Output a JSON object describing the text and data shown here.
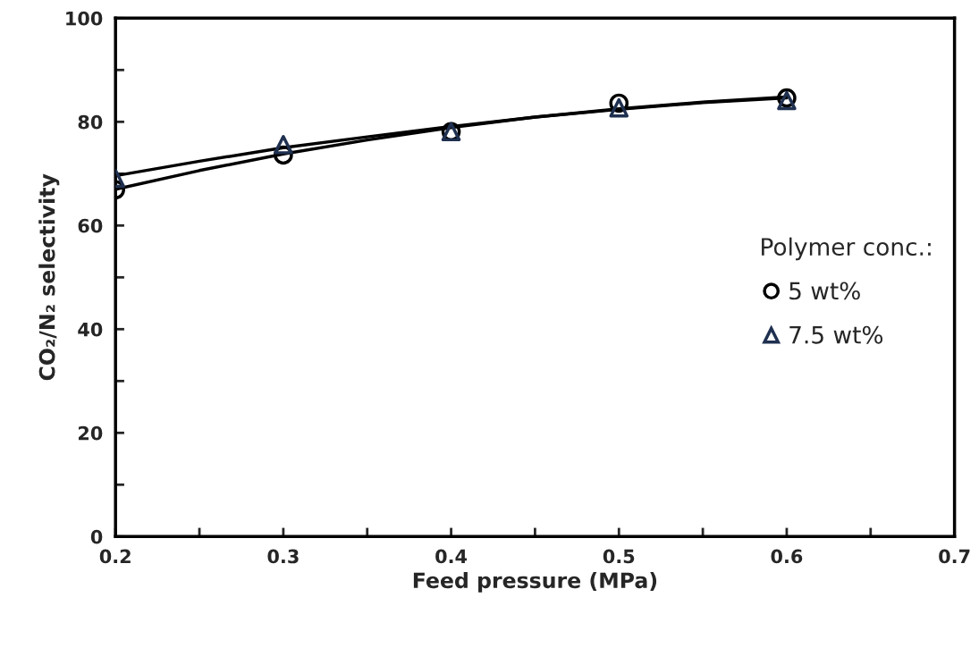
{
  "chart_data": {
    "type": "scatter",
    "xlabel": "Feed pressure (MPa)",
    "ylabel": "CO₂/N₂ selectivity",
    "legend_title": "Polymer conc.:",
    "legend": "right",
    "x": [
      0.2,
      0.3,
      0.4,
      0.5,
      0.6
    ],
    "series": [
      {
        "name": "5 wt%",
        "marker": "circle",
        "color": "#000000",
        "values": [
          66.9,
          73.6,
          78.1,
          83.6,
          84.6
        ]
      },
      {
        "name": "7.5 wt%",
        "marker": "triangle",
        "color": "#1f3050",
        "values": [
          69.1,
          75.6,
          78.1,
          82.7,
          84.1
        ]
      },
      {
        "type": "line",
        "marker": "none",
        "line_style": "solid",
        "color": "#000000",
        "x": [
          0.2,
          0.25,
          0.3,
          0.35,
          0.4,
          0.45,
          0.5,
          0.55,
          0.6
        ],
        "values": [
          67.0,
          70.6,
          73.8,
          76.5,
          78.9,
          80.9,
          82.5,
          83.8,
          84.8
        ]
      },
      {
        "type": "line",
        "marker": "none",
        "line_style": "solid",
        "color": "#000000",
        "x": [
          0.2,
          0.25,
          0.3,
          0.35,
          0.4,
          0.45,
          0.5,
          0.55,
          0.6
        ],
        "values": [
          69.6,
          72.4,
          75.0,
          77.1,
          79.1,
          80.9,
          82.4,
          83.7,
          84.6
        ]
      }
    ],
    "xlim": [
      0.2,
      0.7
    ],
    "xticks": [
      0.2,
      {
        "value": 0.25,
        "label": null
      },
      0.3,
      {
        "value": 0.35,
        "label": null
      },
      0.4,
      {
        "value": 0.45,
        "label": null
      },
      0.5,
      {
        "value": 0.55,
        "label": null
      },
      0.6,
      {
        "value": 0.65,
        "label": null
      },
      0.7
    ],
    "ylim": [
      0,
      100
    ],
    "yticks": [
      0,
      {
        "value": 10,
        "label": null
      },
      20,
      {
        "value": 30,
        "label": null
      },
      40,
      {
        "value": 50,
        "label": null
      },
      60,
      {
        "value": 70,
        "label": null
      },
      80,
      {
        "value": 90,
        "label": null
      },
      100
    ],
    "grid": false
  }
}
